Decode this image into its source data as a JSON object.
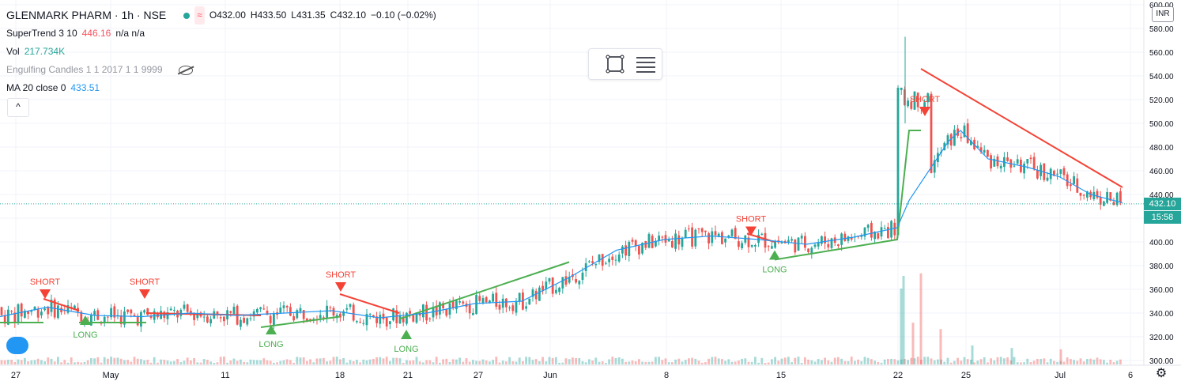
{
  "header": {
    "symbol": "GLENMARK PHARM · 1h · NSE",
    "open": "O432.00",
    "high": "H433.50",
    "low": "L431.35",
    "close": "C432.10",
    "change": "−0.10 (−0.02%)"
  },
  "indicators": [
    {
      "label": "SuperTrend 3 10",
      "value": "446.16",
      "extra": "n/a  n/a"
    },
    {
      "label": "Vol",
      "value": "217.734K"
    },
    {
      "label": "Engulfing Candles 1 1 2017 1 1 9999"
    },
    {
      "label": "MA 20 close 0",
      "value": "433.51"
    }
  ],
  "collapse_label": "^",
  "price_axis": {
    "currency": "INR",
    "last_price": "432.10",
    "countdown": "15:58",
    "ticks": [
      "600.00",
      "580.00",
      "560.00",
      "540.00",
      "520.00",
      "500.00",
      "480.00",
      "460.00",
      "440.00",
      "420.00",
      "400.00",
      "380.00",
      "360.00",
      "340.00",
      "320.00",
      "300.00"
    ]
  },
  "time_axis": {
    "labels": [
      "27",
      "May",
      "11",
      "18",
      "21",
      "27",
      "Jun",
      "8",
      "15",
      "22",
      "25",
      "Jul",
      "6"
    ]
  },
  "colors": {
    "up": "#26a69a",
    "down": "#ef5350",
    "supertrend_up": "#4caf50",
    "supertrend_down": "#f44336",
    "ma": "#2196f3",
    "last_price": "#26a69a",
    "countdown": "#26a69a"
  },
  "chart_data": {
    "type": "candlestick",
    "ylim": [
      300,
      600
    ],
    "supertrend": {
      "up_segments": [
        [
          [
            0,
            332
          ],
          [
            55,
            332
          ]
        ],
        [
          [
            100,
            332
          ],
          [
            185,
            332
          ]
        ],
        [
          [
            330,
            328
          ],
          [
            430,
            337
          ]
        ],
        [
          [
            505,
            335
          ],
          [
            720,
            383
          ]
        ],
        [
          [
            980,
            385
          ],
          [
            1135,
            402
          ],
          [
            1150,
            494
          ],
          [
            1165,
            494
          ]
        ]
      ],
      "down_segments": [
        [
          [
            55,
            352
          ],
          [
            100,
            342
          ]
        ],
        [
          [
            185,
            340
          ],
          [
            330,
            338
          ]
        ],
        [
          [
            430,
            356
          ],
          [
            505,
            340
          ]
        ],
        [
          [
            945,
            407
          ],
          [
            980,
            400
          ]
        ],
        [
          [
            1165,
            546
          ],
          [
            1420,
            446
          ]
        ]
      ]
    },
    "ma20": [
      [
        0,
        337
      ],
      [
        60,
        345
      ],
      [
        120,
        338
      ],
      [
        180,
        337
      ],
      [
        240,
        340
      ],
      [
        300,
        338
      ],
      [
        360,
        340
      ],
      [
        420,
        342
      ],
      [
        480,
        336
      ],
      [
        540,
        340
      ],
      [
        600,
        348
      ],
      [
        660,
        350
      ],
      [
        720,
        370
      ],
      [
        780,
        393
      ],
      [
        840,
        402
      ],
      [
        900,
        405
      ],
      [
        960,
        402
      ],
      [
        1020,
        398
      ],
      [
        1080,
        404
      ],
      [
        1135,
        412
      ],
      [
        1150,
        435
      ],
      [
        1200,
        485
      ],
      [
        1215,
        494
      ],
      [
        1250,
        470
      ],
      [
        1300,
        463
      ],
      [
        1340,
        455
      ],
      [
        1380,
        440
      ],
      [
        1420,
        433
      ]
    ],
    "signals": [
      {
        "type": "short",
        "text": "SHORT",
        "x": 57,
        "price": 360
      },
      {
        "type": "long",
        "text": "LONG",
        "x": 108,
        "price": 330
      },
      {
        "type": "short",
        "text": "SHORT",
        "x": 183,
        "price": 360
      },
      {
        "type": "long",
        "text": "LONG",
        "x": 343,
        "price": 322
      },
      {
        "type": "short",
        "text": "SHORT",
        "x": 431,
        "price": 366
      },
      {
        "type": "long",
        "text": "LONG",
        "x": 514,
        "price": 318
      },
      {
        "type": "short",
        "text": "SHORT",
        "x": 950,
        "price": 413
      },
      {
        "type": "long",
        "text": "LONG",
        "x": 980,
        "price": 385
      },
      {
        "type": "short",
        "text": "SHORT",
        "x": 1170,
        "price": 514
      }
    ],
    "volume_spikes": [
      {
        "x": 1140,
        "v": 0.6,
        "up": true
      },
      {
        "x": 1143,
        "v": 0.7,
        "up": true
      },
      {
        "x": 1155,
        "v": 0.33,
        "up": false
      },
      {
        "x": 1165,
        "v": 0.72,
        "up": false
      },
      {
        "x": 1190,
        "v": 0.28,
        "up": false
      },
      {
        "x": 1230,
        "v": 0.15,
        "up": true
      },
      {
        "x": 1280,
        "v": 0.13,
        "up": true
      },
      {
        "x": 1342,
        "v": 0.12,
        "up": false
      }
    ]
  }
}
